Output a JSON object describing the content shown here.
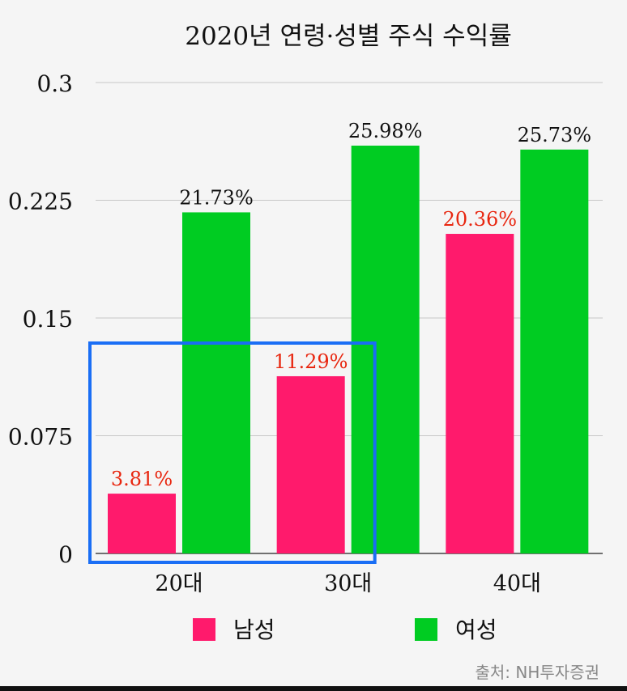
{
  "chart_data": {
    "type": "bar",
    "title": "2020년 연령·성별 주식 수익률",
    "categories": [
      "20대",
      "30대",
      "40대"
    ],
    "series": [
      {
        "name": "남성",
        "values": [
          0.0381,
          0.1129,
          0.2036
        ],
        "labels": [
          "3.81%",
          "11.29%",
          "20.36%"
        ],
        "color": "#ff1a6c",
        "label_color": "#e8260f"
      },
      {
        "name": "여성",
        "values": [
          0.2173,
          0.2598,
          0.2573
        ],
        "labels": [
          "21.73%",
          "25.98%",
          "25.73%"
        ],
        "color": "#00cc22",
        "label_color": "#111111"
      }
    ],
    "yticks": [
      "0",
      "0.075",
      "0.15",
      "0.225",
      "0.3"
    ],
    "ylim": [
      0,
      0.3
    ],
    "grid": true,
    "legend_position": "bottom",
    "highlight": {
      "categories": [
        "20대",
        "30대"
      ],
      "color": "#1a6ef5"
    },
    "source": "출처: NH투자증권"
  }
}
